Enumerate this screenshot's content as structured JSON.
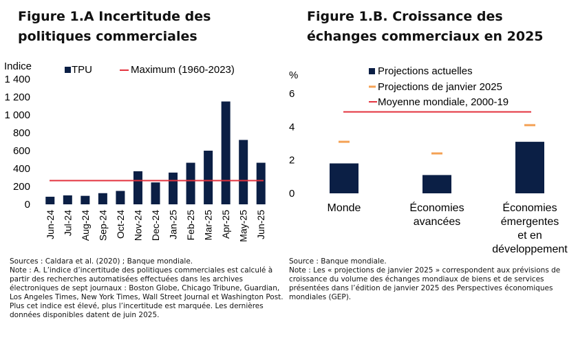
{
  "colors": {
    "bar": "#0b1f45",
    "max_line": "#e3313c",
    "jan_marker": "#f4a154",
    "avg_line": "#e3313c"
  },
  "panel_a": {
    "title": "Figure 1.A Incertitude des politiques commerciales",
    "sources": "Sources : Caldara et al. (2020) ; Banque mondiale.",
    "note": "Note :  A. L’indice d’incertitude des politiques commerciales est calculé à partir des recherches automatisées effectuées dans les archives électroniques de sept journaux : Boston Globe, Chicago Tribune, Guardian, Los Angeles Times, New York Times, Wall Street Journal et Washington Post. Plus cet indice est élevé, plus l’incertitude est marquée. Les dernières données disponibles datent de juin 2025."
  },
  "panel_b": {
    "title": "Figure 1.B. Croissance des échanges commerciaux en 2025",
    "sources": "Source : Banque mondiale.",
    "note": "Note : Les « projections de janvier 2025 » correspondent aux prévisions de croissance du volume des échanges mondiaux de biens et de services présentées dans l’édition de janvier 2025 des Perspectives économiques mondiales (GEP)."
  },
  "chart_data": [
    {
      "type": "bar",
      "title": "Figure 1.A Incertitude des politiques commerciales",
      "ylabel": "Indice",
      "ylim": [
        0,
        1400
      ],
      "yticks": [
        0,
        200,
        400,
        600,
        800,
        1000,
        1200,
        1400
      ],
      "ytick_labels": [
        "0",
        "200",
        "400",
        "600",
        "800",
        "1 000",
        "1 200",
        "1 400"
      ],
      "categories": [
        "Jun-24",
        "Jul-24",
        "Aug-24",
        "Sep-24",
        "Oct-24",
        "Nov-24",
        "Dec-24",
        "Jan-25",
        "Feb-25",
        "Mar-25",
        "Apr-25",
        "May-25",
        "Jun-25"
      ],
      "series": [
        {
          "name": "TPU",
          "values": [
            85,
            100,
            95,
            125,
            150,
            370,
            245,
            355,
            465,
            600,
            1150,
            720,
            465
          ]
        }
      ],
      "reference_line": {
        "name": "Maximum (1960-2023)",
        "value": 265
      },
      "legend": [
        "TPU",
        "Maximum (1960-2023)"
      ]
    },
    {
      "type": "bar",
      "title": "Figure 1.B. Croissance des échanges commerciaux en 2025",
      "ylabel": "%",
      "ylim": [
        0,
        6
      ],
      "yticks": [
        0,
        2,
        4,
        6
      ],
      "ytick_labels": [
        "0",
        "2",
        "4",
        "6"
      ],
      "categories": [
        "Monde",
        "Économies avancées",
        "Économies émergentes et en développement"
      ],
      "category_lines": [
        [
          "Monde"
        ],
        [
          "Économies",
          "avancées"
        ],
        [
          "Économies",
          "émergentes",
          "et en",
          "développement"
        ]
      ],
      "series": [
        {
          "name": "Projections actuelles",
          "values": [
            1.8,
            1.1,
            3.1
          ]
        },
        {
          "name": "Projections de janvier 2025",
          "values": [
            3.1,
            2.4,
            4.1
          ]
        }
      ],
      "reference_line": {
        "name": "Moyenne mondiale, 2000-19",
        "value": 4.9
      },
      "legend": [
        "Projections actuelles",
        "Projections de janvier 2025",
        "Moyenne mondiale, 2000-19"
      ]
    }
  ]
}
